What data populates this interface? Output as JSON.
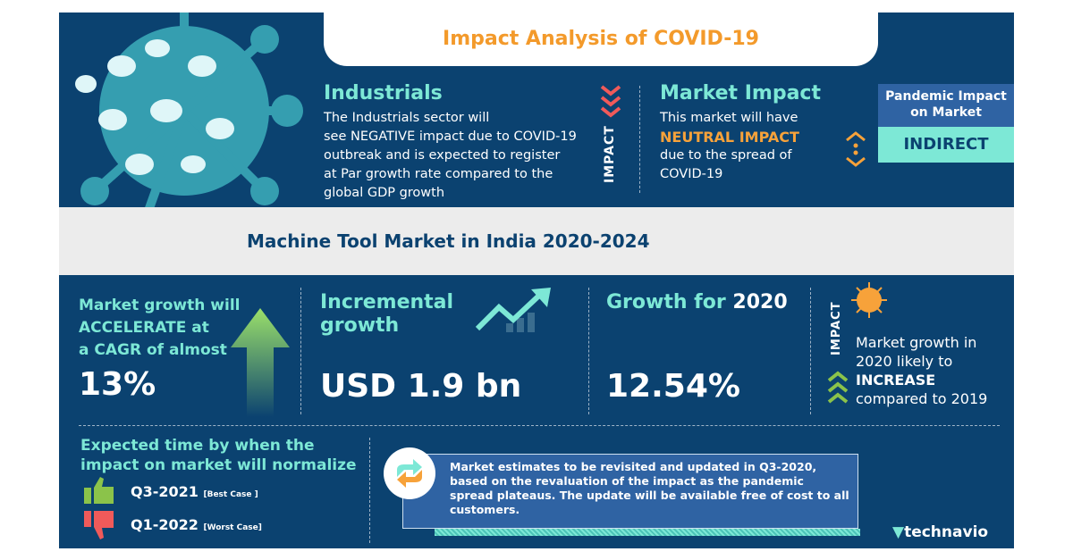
{
  "title": "Impact Analysis of COVID-19",
  "industrials": {
    "heading": "Industrials",
    "lines": [
      "The Industrials sector will",
      "see NEGATIVE impact due to COVID-19",
      "outbreak and is expected to register",
      "at Par growth rate compared to the",
      "global GDP growth"
    ]
  },
  "impact_label": "IMPACT",
  "market_impact": {
    "heading": "Market Impact",
    "line1": "This market will have",
    "highlight": "NEUTRAL IMPACT",
    "line3": "due to the spread of",
    "line4": "COVID-19"
  },
  "pandemic": {
    "heading": "Pandemic Impact on Market",
    "value": "INDIRECT"
  },
  "market_title": "Machine Tool Market in India 2020-2024",
  "cagr": {
    "lines": [
      "Market growth will",
      "ACCELERATE at",
      "a CAGR of almost"
    ],
    "value": "13%"
  },
  "incremental": {
    "heading_lines": [
      "Incremental",
      "growth"
    ],
    "value": "USD 1.9 bn"
  },
  "growth2020": {
    "heading_prefix": "Growth for ",
    "heading_year": "2020",
    "value": "12.54%"
  },
  "impact2020": {
    "label": "IMPACT",
    "line1": "Market growth in",
    "line2": "2020 likely to",
    "highlight": "INCREASE",
    "line4": "compared to 2019"
  },
  "normalize": {
    "heading_lines": [
      "Expected time by when the",
      "impact on market will normalize"
    ],
    "best": {
      "date": "Q3-2021",
      "label": "[Best Case ]"
    },
    "worst": {
      "date": "Q1-2022",
      "label": "[Worst Case]"
    }
  },
  "note": "Market estimates to be revisited and updated in Q3-2020, based on the revaluation of the impact as the pandemic spread plateaus. The update will be available free of cost to all customers.",
  "brand": "technavio",
  "colors": {
    "navy": "#0b4270",
    "teal": "#7de8d6",
    "orange": "#f7a23a",
    "green": "#8bc34a",
    "red": "#f05a5a"
  }
}
